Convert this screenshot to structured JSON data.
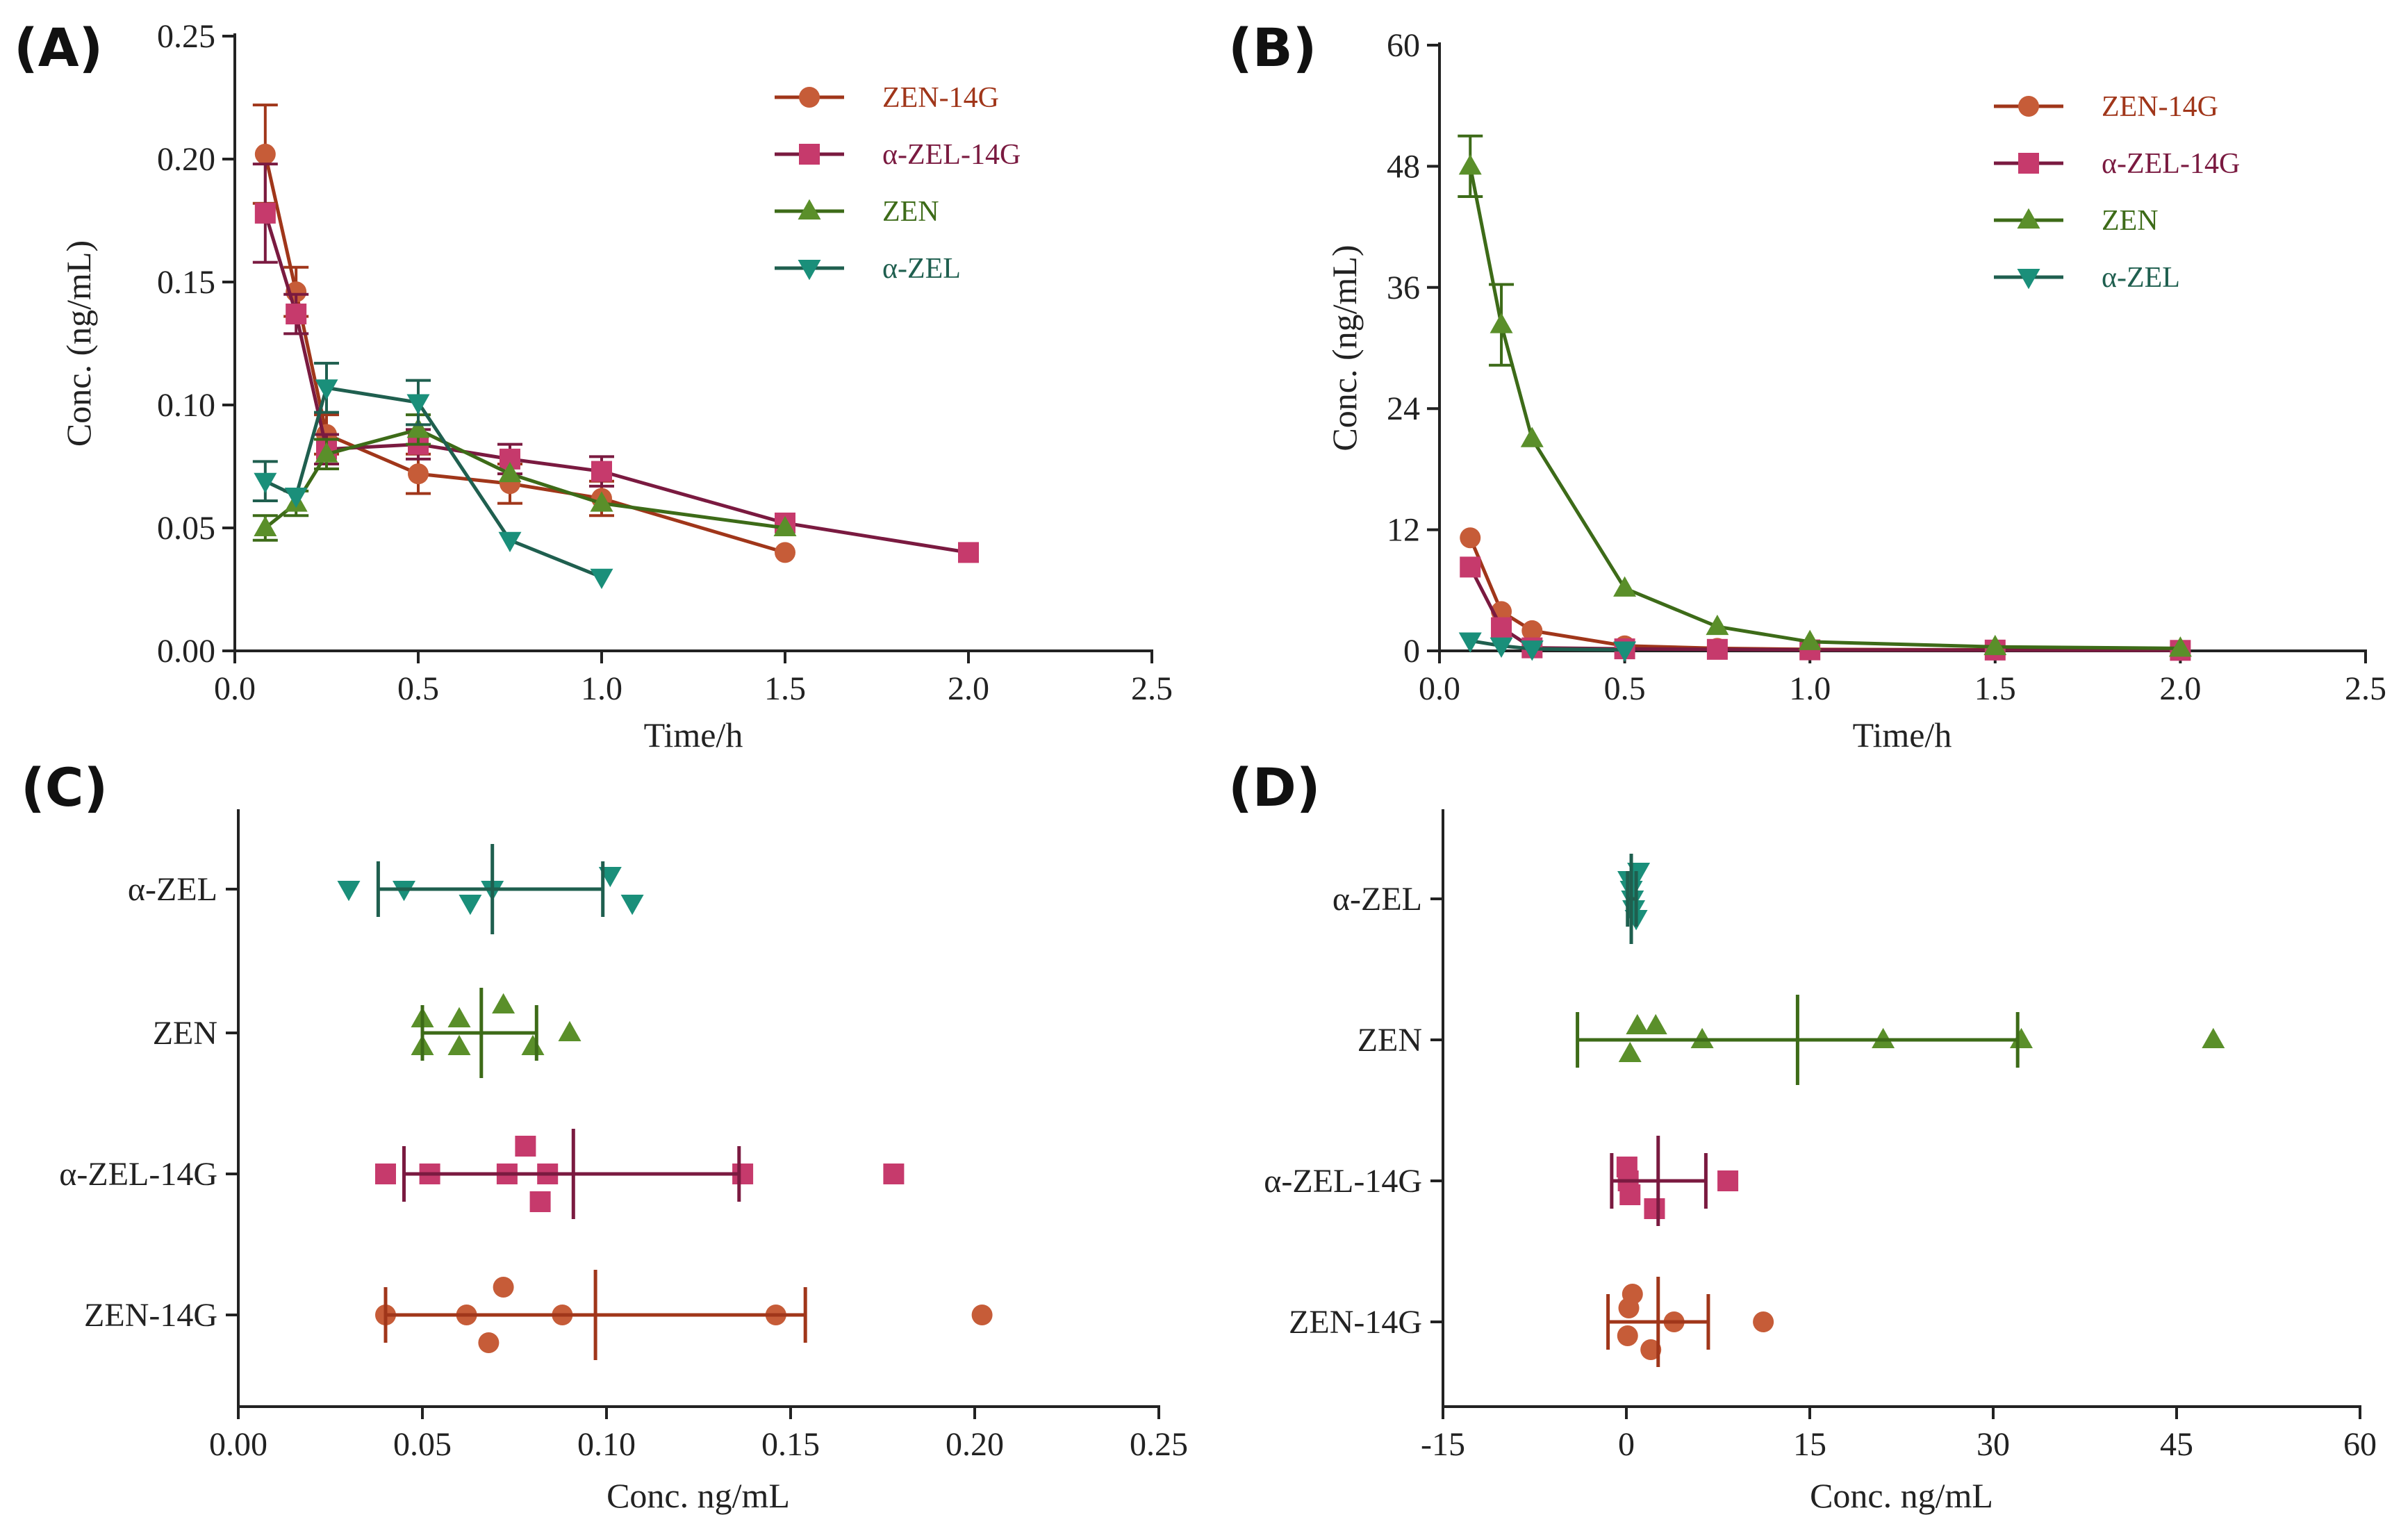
{
  "colors": {
    "zen14g": "#A0361A",
    "azel14g": "#7A1A40",
    "zen": "#3D6B18",
    "azel": "#1F5F4F",
    "zen14g_marker": "#C65C38",
    "azel14g_marker": "#C63A6C",
    "zen_marker": "#5A8F2A",
    "azel_marker": "#1A8F7A",
    "axis": "#222222"
  },
  "chart_data": [
    {
      "id": "A",
      "panel_label": "(A)",
      "type": "line",
      "xlabel": "Time/h",
      "ylabel": "Conc. (ng/mL)",
      "xlim": [
        0,
        2.5
      ],
      "ylim": [
        0,
        0.25
      ],
      "xticks": [
        "0.0",
        "0.5",
        "1.0",
        "1.5",
        "2.0",
        "2.5"
      ],
      "yticks": [
        "0.00",
        "0.05",
        "0.10",
        "0.15",
        "0.20",
        "0.25"
      ],
      "legend_position": "top-right",
      "series": [
        {
          "name": "ZEN-14G",
          "key": "zen14g",
          "marker": "circle",
          "x": [
            0.083,
            0.167,
            0.25,
            0.5,
            0.75,
            1.0,
            1.5
          ],
          "y": [
            0.202,
            0.146,
            0.088,
            0.072,
            0.068,
            0.062,
            0.04
          ],
          "err": [
            0.02,
            0.01,
            0.008,
            0.008,
            0.008,
            0.007,
            0
          ]
        },
        {
          "name": "α-ZEL-14G",
          "key": "azel14g",
          "marker": "square",
          "x": [
            0.083,
            0.167,
            0.25,
            0.5,
            0.75,
            1.0,
            1.5,
            2.0
          ],
          "y": [
            0.178,
            0.137,
            0.082,
            0.084,
            0.078,
            0.073,
            0.052,
            0.04
          ],
          "err": [
            0.02,
            0.008,
            0.006,
            0.006,
            0.006,
            0.006,
            0,
            0
          ]
        },
        {
          "name": "ZEN",
          "key": "zen",
          "marker": "triangle-up",
          "x": [
            0.083,
            0.167,
            0.25,
            0.5,
            0.75,
            1.0,
            1.5
          ],
          "y": [
            0.05,
            0.06,
            0.08,
            0.09,
            0.072,
            0.06,
            0.05
          ],
          "err": [
            0.005,
            0.005,
            0.006,
            0.006,
            0,
            0,
            0
          ]
        },
        {
          "name": "α-ZEL",
          "key": "azel",
          "marker": "triangle-down",
          "x": [
            0.083,
            0.167,
            0.25,
            0.5,
            0.75,
            1.0
          ],
          "y": [
            0.069,
            0.063,
            0.107,
            0.101,
            0.045,
            0.03
          ],
          "err": [
            0.008,
            0,
            0.01,
            0.009,
            0,
            0
          ]
        }
      ]
    },
    {
      "id": "B",
      "panel_label": "(B)",
      "type": "line",
      "xlabel": "Time/h",
      "ylabel": "Conc. (ng/mL)",
      "xlim": [
        0,
        2.5
      ],
      "ylim": [
        0,
        60
      ],
      "xticks": [
        "0.0",
        "0.5",
        "1.0",
        "1.5",
        "2.0",
        "2.5"
      ],
      "yticks": [
        "0",
        "12",
        "24",
        "36",
        "48",
        "60"
      ],
      "legend_position": "top-right",
      "series": [
        {
          "name": "ZEN-14G",
          "key": "zen14g",
          "marker": "circle",
          "x": [
            0.083,
            0.167,
            0.25,
            0.5,
            0.75,
            1.0,
            1.5
          ],
          "y": [
            11.2,
            3.9,
            2.0,
            0.5,
            0.25,
            0.15,
            0.1
          ],
          "err": [
            0,
            0,
            0,
            0,
            0,
            0,
            0
          ]
        },
        {
          "name": "α-ZEL-14G",
          "key": "azel14g",
          "marker": "square",
          "x": [
            0.083,
            0.167,
            0.25,
            0.5,
            0.75,
            1.0,
            1.5,
            2.0
          ],
          "y": [
            8.3,
            2.3,
            0.3,
            0.2,
            0.15,
            0.1,
            0.08,
            0.05
          ],
          "err": [
            0,
            0,
            0,
            0,
            0,
            0,
            0,
            0
          ]
        },
        {
          "name": "ZEN",
          "key": "zen",
          "marker": "triangle-up",
          "x": [
            0.083,
            0.167,
            0.25,
            0.5,
            0.75,
            1.0,
            1.5,
            2.0
          ],
          "y": [
            48.0,
            32.3,
            21.0,
            6.2,
            2.4,
            0.9,
            0.4,
            0.25
          ],
          "err": [
            3.0,
            4.0,
            0,
            0,
            0,
            0,
            0,
            0
          ]
        },
        {
          "name": "α-ZEL",
          "key": "azel",
          "marker": "triangle-down",
          "x": [
            0.083,
            0.167,
            0.25,
            0.5
          ],
          "y": [
            1.0,
            0.5,
            0.2,
            0.1
          ],
          "err": [
            0,
            0,
            0,
            0
          ]
        }
      ]
    },
    {
      "id": "C",
      "panel_label": "(C)",
      "type": "scatter",
      "xlabel": "Conc. ng/mL",
      "xlim": [
        0,
        0.25
      ],
      "xticks": [
        "0.00",
        "0.05",
        "0.10",
        "0.15",
        "0.20",
        "0.25"
      ],
      "categories": [
        "α-ZEL",
        "ZEN",
        "α-ZEL-14G",
        "ZEN-14G"
      ],
      "groups": [
        {
          "name": "α-ZEL",
          "key": "azel",
          "marker": "triangle-down",
          "mean": 0.069,
          "low": 0.038,
          "high": 0.099,
          "points": [
            0.03,
            0.045,
            0.063,
            0.069,
            0.101,
            0.107
          ],
          "offsets": [
            0,
            0,
            1,
            0,
            -1,
            1
          ]
        },
        {
          "name": "ZEN",
          "key": "zen",
          "marker": "triangle-up",
          "mean": 0.066,
          "low": 0.05,
          "high": 0.081,
          "points": [
            0.05,
            0.05,
            0.06,
            0.06,
            0.072,
            0.08,
            0.09
          ],
          "offsets": [
            -1,
            1,
            -1,
            1,
            -2,
            1,
            0
          ]
        },
        {
          "name": "α-ZEL-14G",
          "key": "azel14g",
          "marker": "square",
          "points": [
            0.04,
            0.052,
            0.073,
            0.078,
            0.082,
            0.084,
            0.137,
            0.178
          ],
          "offsets": [
            0,
            0,
            0,
            -2,
            2,
            0,
            0,
            0
          ],
          "mean": 0.091,
          "low": 0.045,
          "high": 0.136
        },
        {
          "name": "ZEN-14G",
          "key": "zen14g",
          "marker": "circle",
          "points": [
            0.04,
            0.062,
            0.068,
            0.072,
            0.088,
            0.146,
            0.202
          ],
          "offsets": [
            0,
            0,
            2,
            -2,
            0,
            0,
            0
          ],
          "mean": 0.097,
          "low": 0.04,
          "high": 0.154
        }
      ]
    },
    {
      "id": "D",
      "panel_label": "(D)",
      "type": "scatter",
      "xlabel": "Conc. ng/mL",
      "xlim": [
        -15,
        60
      ],
      "xticks": [
        "-15",
        "0",
        "15",
        "30",
        "45",
        "60"
      ],
      "categories": [
        "α-ZEL",
        "ZEN",
        "α-ZEL-14G",
        "ZEN-14G"
      ],
      "groups": [
        {
          "name": "α-ZEL",
          "key": "azel",
          "marker": "triangle-down",
          "mean": 0.4,
          "low": 0.1,
          "high": 0.8,
          "points": [
            0.2,
            0.4,
            0.5,
            0.6,
            0.8,
            1.0
          ],
          "offsets": [
            -1.4,
            -0.7,
            0,
            0.7,
            1.4,
            -2
          ]
        },
        {
          "name": "ZEN",
          "key": "zen",
          "marker": "triangle-up",
          "mean": 14.0,
          "low": -4.0,
          "high": 32.0,
          "points": [
            0.3,
            0.9,
            2.4,
            6.2,
            21.0,
            32.3,
            48.0
          ],
          "offsets": [
            1,
            -1,
            -1,
            0,
            0,
            0,
            0
          ]
        },
        {
          "name": "α-ZEL-14G",
          "key": "azel14g",
          "marker": "square",
          "mean": 2.6,
          "low": -1.2,
          "high": 6.5,
          "points": [
            0.05,
            0.15,
            0.3,
            2.3,
            8.3
          ],
          "offsets": [
            -1,
            0,
            1,
            2,
            0
          ]
        },
        {
          "name": "ZEN-14G",
          "key": "zen14g",
          "marker": "circle",
          "mean": 2.6,
          "low": -1.5,
          "high": 6.7,
          "points": [
            0.1,
            0.2,
            0.5,
            2.0,
            3.9,
            11.2
          ],
          "offsets": [
            1,
            -1,
            -2,
            2,
            0,
            0
          ]
        }
      ]
    }
  ]
}
